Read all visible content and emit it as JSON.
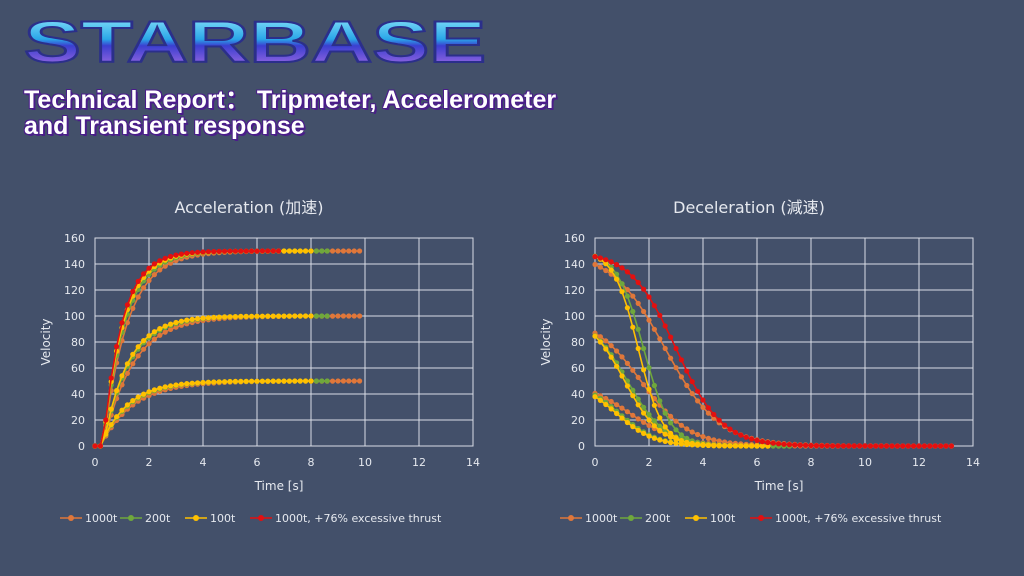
{
  "logo": {
    "text": "STARBASE"
  },
  "header": {
    "title_line1": "Technical Report： Tripmeter, Accelerometer",
    "title_line2": "and Transient response"
  },
  "colors": {
    "1000t": "#e0773a",
    "200t": "#6fa83c",
    "100t": "#ffc000",
    "1000t_excess": "#e31010"
  },
  "chart_data": [
    {
      "type": "line",
      "title": "Acceleration (加速)",
      "xlabel": "Time [s]",
      "ylabel": "Velocity",
      "xlim": [
        0,
        14
      ],
      "ylim": [
        0,
        160
      ],
      "xticks": [
        "0",
        "2",
        "4",
        "6",
        "8",
        "10",
        "12",
        "14"
      ],
      "yticks": [
        "0",
        "20",
        "40",
        "60",
        "80",
        "100",
        "120",
        "140",
        "160"
      ],
      "grid": true,
      "legend": "bottom",
      "series": [
        {
          "name": "1000t",
          "key": "1000t",
          "tmax": 9.9,
          "step": 0.2,
          "targets": [
            50,
            100,
            150
          ],
          "tau": [
            1.2,
            1.1,
            0.9
          ],
          "delay": [
            0.2,
            0.3,
            0.3
          ]
        },
        {
          "name": "200t",
          "key": "200t",
          "tmax": 8.7,
          "step": 0.2,
          "targets": [
            50,
            100,
            150
          ],
          "tau": [
            1.05,
            0.95,
            0.8
          ],
          "delay": [
            0.2,
            0.3,
            0.3
          ]
        },
        {
          "name": "100t",
          "key": "100t",
          "tmax": 8.0,
          "step": 0.2,
          "targets": [
            50,
            100,
            150
          ],
          "tau": [
            1.0,
            0.9,
            0.75
          ],
          "delay": [
            0.2,
            0.3,
            0.3
          ]
        },
        {
          "name": "1000t, +76% excessive thrust",
          "key": "1000t_excess",
          "tmax": 6.8,
          "step": 0.2,
          "targets": [
            150
          ],
          "tau": [
            0.7
          ],
          "delay": [
            0.3
          ]
        }
      ]
    },
    {
      "type": "line",
      "title": "Deceleration (減速)",
      "xlabel": "Time [s]",
      "ylabel": "Velocity",
      "xlim": [
        0,
        14
      ],
      "ylim": [
        0,
        160
      ],
      "xticks": [
        "0",
        "2",
        "4",
        "6",
        "8",
        "10",
        "12",
        "14"
      ],
      "yticks": [
        "0",
        "20",
        "40",
        "60",
        "80",
        "100",
        "120",
        "140",
        "160"
      ],
      "grid": true,
      "legend": "bottom",
      "series": [
        {
          "name": "1000t",
          "key": "1000t",
          "tmax": 13.3,
          "step": 0.2,
          "starts": [
            50,
            100,
            150
          ],
          "center": [
            1.3,
            1.7,
            2.6
          ],
          "width": [
            0.9,
            0.9,
            1.0
          ]
        },
        {
          "name": "200t",
          "key": "200t",
          "tmax": 7.2,
          "step": 0.2,
          "starts": [
            50,
            100,
            150
          ],
          "center": [
            0.9,
            1.2,
            1.8
          ],
          "width": [
            0.7,
            0.7,
            0.5
          ]
        },
        {
          "name": "100t",
          "key": "100t",
          "tmax": 6.4,
          "step": 0.2,
          "starts": [
            50,
            100,
            150
          ],
          "center": [
            0.8,
            1.1,
            1.6
          ],
          "width": [
            0.7,
            0.65,
            0.45
          ]
        },
        {
          "name": "1000t, +76% excessive thrust",
          "key": "1000t_excess",
          "tmax": 13.3,
          "step": 0.2,
          "starts": [
            150
          ],
          "center": [
            3.0
          ],
          "width": [
            0.85
          ]
        }
      ]
    }
  ]
}
